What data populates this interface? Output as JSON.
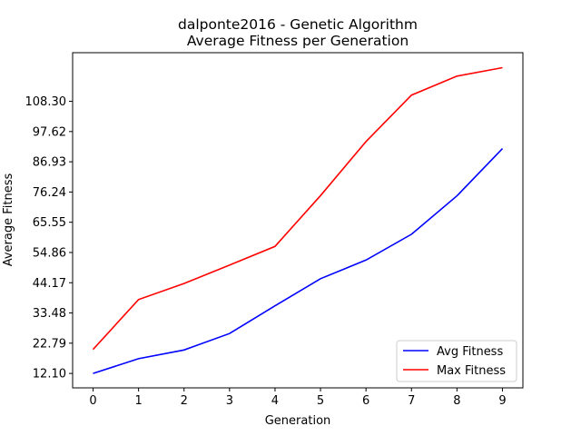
{
  "chart_data": {
    "type": "line",
    "title_line1": "dalponte2016 - Genetic Algorithm",
    "title_line2": "Average Fitness per Generation",
    "xlabel": "Generation",
    "ylabel": "Average Fitness",
    "x": [
      0,
      1,
      2,
      3,
      4,
      5,
      6,
      7,
      8,
      9
    ],
    "xticks": [
      "0",
      "1",
      "2",
      "3",
      "4",
      "5",
      "6",
      "7",
      "8",
      "9"
    ],
    "yticks": [
      12.1,
      22.79,
      33.48,
      44.17,
      54.86,
      65.55,
      76.24,
      86.93,
      97.62,
      108.3
    ],
    "ytick_labels": [
      "12.10",
      "22.79",
      "33.48",
      "44.17",
      "54.86",
      "65.55",
      "76.24",
      "86.93",
      "97.62",
      "108.30"
    ],
    "xlim": [
      -0.45,
      9.45
    ],
    "ylim": [
      7.0,
      125.5
    ],
    "grid": false,
    "legend_position": "lower-right",
    "series": [
      {
        "name": "Avg Fitness",
        "color": "#0000ff",
        "values": [
          12.1,
          17.3,
          20.4,
          26.2,
          36.0,
          45.6,
          52.2,
          61.3,
          74.9,
          91.6
        ]
      },
      {
        "name": "Max Fitness",
        "color": "#ff0000",
        "values": [
          20.6,
          38.2,
          43.9,
          50.4,
          57.0,
          75.0,
          94.1,
          110.5,
          117.2,
          120.2
        ]
      }
    ]
  }
}
